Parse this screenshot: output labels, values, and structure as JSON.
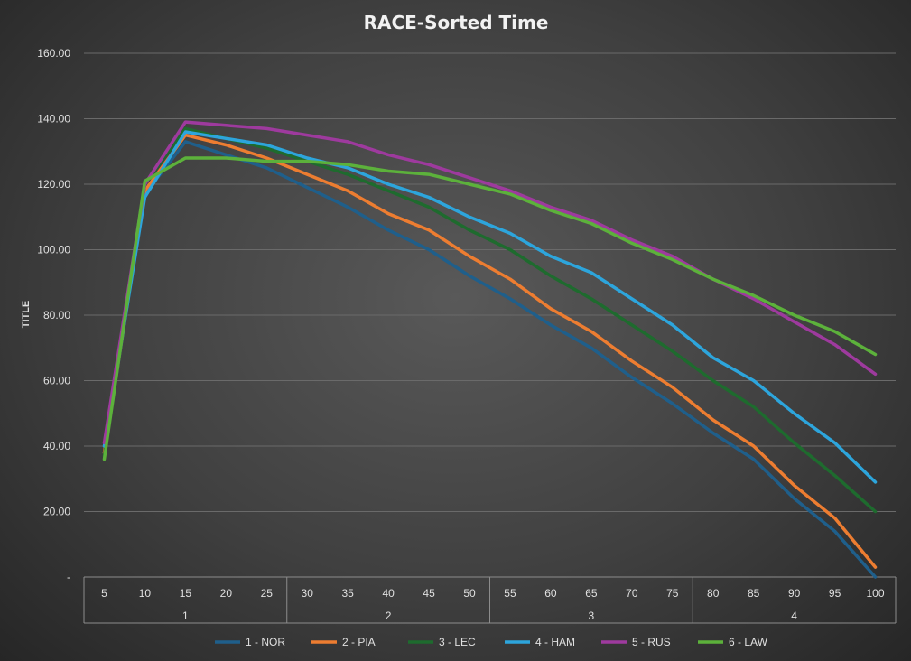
{
  "chart_data": {
    "type": "line",
    "title": "RACE-Sorted Time",
    "ylabel": "TITLE",
    "xlabel": "",
    "ylim": [
      0,
      160
    ],
    "y_ticks": [
      "-",
      "20.00",
      "40.00",
      "60.00",
      "80.00",
      "100.00",
      "120.00",
      "140.00",
      "160.00"
    ],
    "x": [
      "5",
      "10",
      "15",
      "20",
      "25",
      "30",
      "35",
      "40",
      "45",
      "50",
      "55",
      "60",
      "65",
      "70",
      "75",
      "80",
      "85",
      "90",
      "95",
      "100"
    ],
    "groups": [
      {
        "label": "1",
        "span": [
          0,
          4
        ]
      },
      {
        "label": "2",
        "span": [
          5,
          9
        ]
      },
      {
        "label": "3",
        "span": [
          10,
          14
        ]
      },
      {
        "label": "4",
        "span": [
          15,
          19
        ]
      }
    ],
    "grid": true,
    "legend": "bottom",
    "series": [
      {
        "name": "1 - NOR",
        "color": "#1f5f8b",
        "values": [
          38,
          117,
          133,
          129,
          125,
          119,
          113,
          106,
          100,
          92,
          85,
          77,
          70,
          61,
          53,
          44,
          36,
          24,
          14,
          0
        ]
      },
      {
        "name": "2 - PIA",
        "color": "#ed7d31",
        "values": [
          38,
          118,
          135,
          132,
          128,
          123,
          118,
          111,
          106,
          98,
          91,
          82,
          75,
          66,
          58,
          48,
          40,
          28,
          18,
          3
        ]
      },
      {
        "name": "3 - LEC",
        "color": "#1e6b2e",
        "values": [
          37,
          120,
          137,
          134,
          131,
          127,
          123,
          118,
          113,
          106,
          100,
          92,
          85,
          77,
          69,
          60,
          52,
          41,
          31,
          20
        ]
      },
      {
        "name": "4 - HAM",
        "color": "#2da5dc",
        "values": [
          40,
          116,
          136,
          134,
          132,
          128,
          125,
          120,
          116,
          110,
          105,
          98,
          93,
          85,
          77,
          67,
          60,
          50,
          41,
          29
        ]
      },
      {
        "name": "5 - RUS",
        "color": "#9e3a9e",
        "values": [
          41,
          120,
          139,
          138,
          137,
          135,
          133,
          129,
          126,
          122,
          118,
          113,
          109,
          103,
          98,
          91,
          85,
          78,
          71,
          62
        ]
      },
      {
        "name": "6 - LAW",
        "color": "#5cb13b",
        "values": [
          36,
          121,
          128,
          128,
          127,
          127,
          126,
          124,
          123,
          120,
          117,
          112,
          108,
          102,
          97,
          91,
          86,
          80,
          75,
          68
        ]
      }
    ]
  }
}
